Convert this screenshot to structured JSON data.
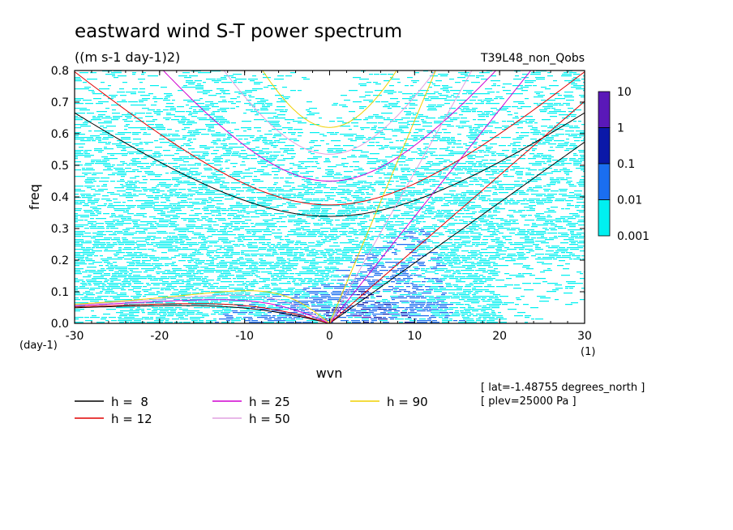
{
  "chart_data": {
    "type": "heatmap",
    "title": "eastward wind S-T power spectrum",
    "units_label": "((m s-1 day-1)2)",
    "run_label": "T39L48_non_Qobs",
    "xlabel": "wvn",
    "ylabel": "freq",
    "x_unit_label": "(1)",
    "y_unit_label": "(day-1)",
    "xlim": [
      -30,
      30
    ],
    "ylim": [
      0,
      0.8
    ],
    "x_ticks": [
      "-30",
      "-20",
      "-10",
      "0",
      "10",
      "20",
      "30"
    ],
    "y_ticks": [
      "0.0",
      "0.1",
      "0.2",
      "0.3",
      "0.4",
      "0.5",
      "0.6",
      "0.7",
      "0.8"
    ],
    "colorbar": {
      "labels": [
        "10",
        "1",
        "0.1",
        "0.01",
        "0.001"
      ],
      "colors": [
        "#5a18b8",
        "#0a18a8",
        "#1a6ef0",
        "#00f0f0"
      ]
    },
    "info_lines": [
      "[ lat=-1.48755 degrees_north ]",
      "[ plev=25000 Pa ]"
    ],
    "dispersion_curves": [
      {
        "label": "h =  8",
        "h": 8,
        "color": "#000000"
      },
      {
        "label": "h = 12",
        "h": 12,
        "color": "#e00000"
      },
      {
        "label": "h = 25",
        "h": 25,
        "color": "#d000d0"
      },
      {
        "label": "h = 50",
        "h": 50,
        "color": "#e0a0e0"
      },
      {
        "label": "h = 90",
        "h": 90,
        "color": "#f0d000"
      }
    ]
  }
}
